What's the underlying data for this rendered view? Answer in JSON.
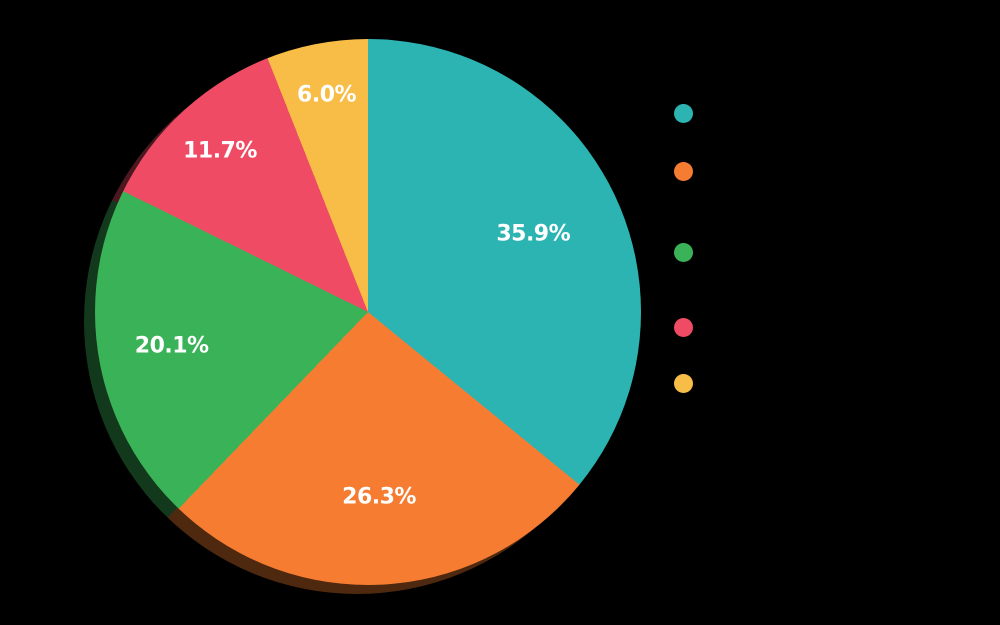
{
  "background_color": "#000000",
  "chart_data": {
    "type": "pie",
    "title": "",
    "slices": [
      {
        "label": "35.9%",
        "value": 35.9,
        "color": "#2BB4B2"
      },
      {
        "label": "26.3%",
        "value": 26.3,
        "color": "#F57C30"
      },
      {
        "label": "20.1%",
        "value": 20.1,
        "color": "#3AB258"
      },
      {
        "label": "11.7%",
        "value": 11.7,
        "color": "#EF4B64"
      },
      {
        "label": "6.0%",
        "value": 6.0,
        "color": "#F7BD47"
      }
    ],
    "start_angle_deg": 0,
    "direction": "clockwise",
    "slice_label_color": "#FFFFFF",
    "effects": {
      "drop_shadow": true
    },
    "legend": {
      "position": "right",
      "marker_shape": "circle",
      "items": [
        {
          "color": "#2BB4B2"
        },
        {
          "color": "#F57C30"
        },
        {
          "color": "#3AB258"
        },
        {
          "color": "#EF4B64"
        },
        {
          "color": "#F7BD47"
        }
      ]
    }
  }
}
